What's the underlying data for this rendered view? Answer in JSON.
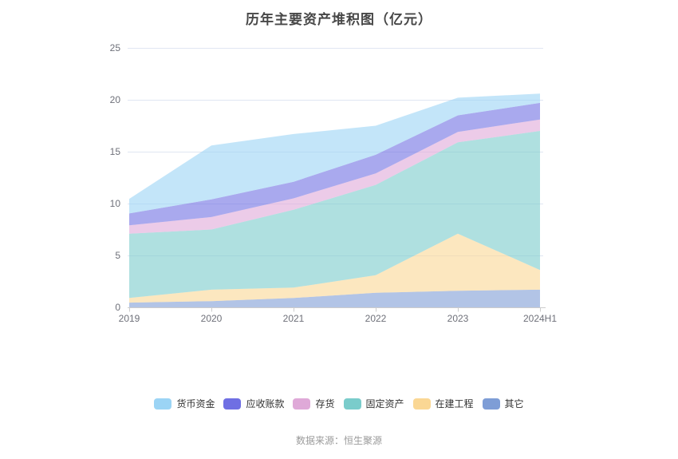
{
  "title": "历年主要资产堆积图（亿元）",
  "source_note": "数据来源：恒生聚源",
  "colors": {
    "title_text": "#474747",
    "axis_text": "#6e7079",
    "gridline": "#e0e6f2",
    "axis_line": "#cccccc",
    "legend_text": "#333333",
    "source_text": "#9b9b9b",
    "background": "#ffffff"
  },
  "chart_data": {
    "type": "area",
    "stacked": true,
    "title": "历年主要资产堆积图（亿元）",
    "x": [
      "2019",
      "2020",
      "2021",
      "2022",
      "2023",
      "2024H1"
    ],
    "series": [
      {
        "id": "monetary-funds",
        "name": "货币资金",
        "color": "#9bd4f5",
        "values": [
          1.4,
          5.2,
          4.6,
          2.8,
          1.7,
          0.9
        ]
      },
      {
        "id": "accounts-receivable",
        "name": "应收账款",
        "color": "#6f6fe3",
        "values": [
          1.15,
          1.7,
          1.6,
          1.8,
          1.6,
          1.6
        ]
      },
      {
        "id": "inventory",
        "name": "存货",
        "color": "#dfa9d8",
        "values": [
          0.8,
          1.2,
          1.1,
          1.1,
          1.0,
          1.1
        ]
      },
      {
        "id": "fixed-assets",
        "name": "固定资产",
        "color": "#7accCb",
        "values": [
          6.2,
          5.8,
          7.5,
          8.7,
          8.8,
          13.4
        ]
      },
      {
        "id": "construction-in-progress",
        "name": "在建工程",
        "color": "#fad794",
        "values": [
          0.45,
          1.1,
          1.0,
          1.7,
          5.5,
          1.9
        ]
      },
      {
        "id": "other",
        "name": "其它",
        "color": "#7e9dd6",
        "values": [
          0.45,
          0.6,
          0.9,
          1.4,
          1.6,
          1.7
        ]
      }
    ],
    "stack_order_bottom_to_top": [
      "other",
      "construction-in-progress",
      "fixed-assets",
      "inventory",
      "accounts-receivable",
      "monetary-funds"
    ],
    "cumulative_totals": [
      10.45,
      15.6,
      16.7,
      17.5,
      20.2,
      20.6
    ],
    "xlabel": "",
    "ylabel": "",
    "y_ticks": [
      0,
      5,
      10,
      15,
      20,
      25
    ],
    "ylim": [
      0,
      25
    ],
    "grid": true,
    "area_fill_opacity": 0.6,
    "legend_position": "bottom"
  }
}
